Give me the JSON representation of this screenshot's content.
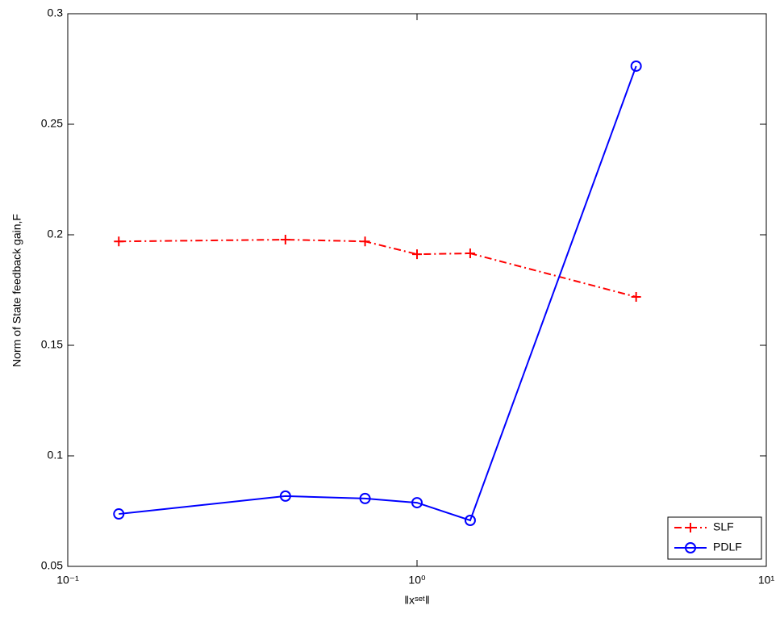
{
  "chart_data": {
    "type": "line",
    "xscale": "log",
    "xlabel": "‖xˢᵉᵗ‖",
    "ylabel": "Norm of State feedback gain,F",
    "x": [
      0.14,
      0.42,
      0.71,
      1,
      1.42,
      4.24
    ],
    "series": [
      {
        "name": "SLF",
        "color": "#ff0000",
        "linestyle": "dashdot",
        "marker": "plus",
        "values": [
          0.197,
          0.1978,
          0.197,
          0.1912,
          0.1916,
          0.1719
        ]
      },
      {
        "name": "PDLF",
        "color": "#0000ff",
        "linestyle": "solid",
        "marker": "circle",
        "values": [
          0.0737,
          0.0818,
          0.0807,
          0.0788,
          0.0708,
          0.2763
        ]
      }
    ],
    "xlim": [
      0.1,
      10
    ],
    "xticks": [
      {
        "value": 0.1,
        "label": "10⁻¹"
      },
      {
        "value": 1,
        "label": "10⁰"
      },
      {
        "value": 10,
        "label": "10¹"
      }
    ],
    "ylim": [
      0.05,
      0.3
    ],
    "yticks": [
      0.05,
      0.1,
      0.15,
      0.2,
      0.25,
      0.3
    ],
    "grid": false,
    "legend": "lower right"
  }
}
